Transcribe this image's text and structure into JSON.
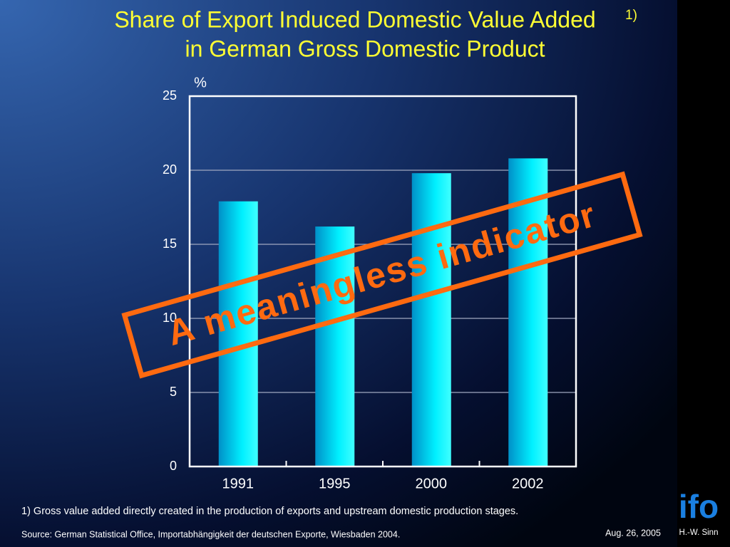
{
  "chart_data": {
    "type": "bar",
    "title": "Share of Export Induced Domestic Value Added",
    "title_note": "1)",
    "subtitle": "in German Gross Domestic Product",
    "y_label": "%",
    "categories": [
      "1991",
      "1995",
      "2000",
      "2002"
    ],
    "values": [
      17.9,
      16.2,
      19.8,
      20.8
    ],
    "color": "#00e0f0",
    "ylim": [
      0,
      25
    ],
    "yticks": [
      0,
      5,
      10,
      15,
      20,
      25
    ],
    "grid": true,
    "annotation": "A meaningless indicator"
  },
  "footer": {
    "footnote": "1) Gross value added directly created in the production of exports and upstream domestic production stages.",
    "source": "Source: German Statistical Office, Importabhängigkeit der deutschen Exporte, Wiesbaden 2004.",
    "date": "Aug. 26, 2005",
    "logo": "ifo",
    "author": "H.-W. Sinn"
  }
}
